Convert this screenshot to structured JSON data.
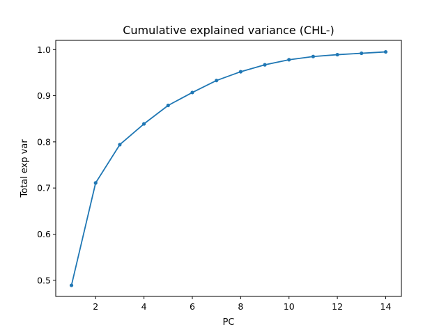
{
  "chart_data": {
    "type": "line",
    "title": "Cumulative explained variance (CHL-)",
    "xlabel": "PC",
    "ylabel": "Total exp var",
    "xlim": [
      0.35,
      14.65
    ],
    "ylim": [
      0.465,
      1.02
    ],
    "xticks": [
      2,
      4,
      6,
      8,
      10,
      12,
      14
    ],
    "yticks": [
      0.5,
      0.6,
      0.7,
      0.8,
      0.9,
      1.0
    ],
    "grid": false,
    "legend": "none",
    "series": [
      {
        "color": "#1f77b4",
        "marker": "circle",
        "x": [
          1,
          2,
          3,
          4,
          5,
          6,
          7,
          8,
          9,
          10,
          11,
          12,
          13,
          14
        ],
        "y": [
          0.489,
          0.711,
          0.794,
          0.839,
          0.879,
          0.907,
          0.933,
          0.952,
          0.967,
          0.978,
          0.985,
          0.989,
          0.992,
          0.995
        ]
      }
    ]
  }
}
